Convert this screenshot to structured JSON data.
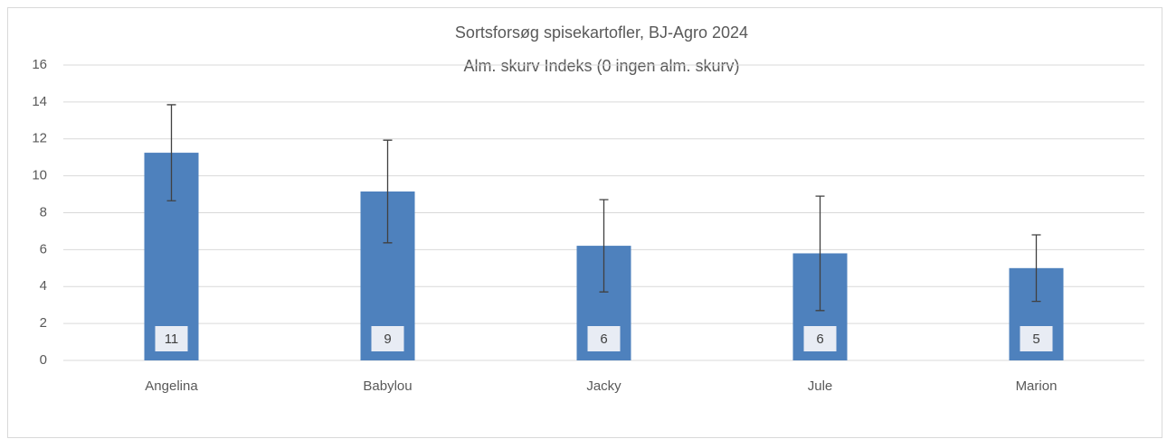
{
  "chart_data": {
    "type": "bar",
    "title": "Sortsforsøg spisekartofler, BJ-Agro 2024",
    "subtitle": "Alm. skurv Indeks (0 ingen alm. skurv)",
    "categories": [
      "Angelina",
      "Babylou",
      "Jacky",
      "Jule",
      "Marion"
    ],
    "values": [
      11.25,
      9.15,
      6.21,
      5.8,
      5.0
    ],
    "value_labels": [
      "11",
      "9",
      "6",
      "6",
      "5"
    ],
    "errors": [
      2.6,
      2.78,
      2.5,
      3.1,
      1.8
    ],
    "color": "#4e81bd",
    "ylim": [
      0,
      16
    ],
    "yticks": [
      0,
      2,
      4,
      6,
      8,
      10,
      12,
      14,
      16
    ],
    "grid": true
  }
}
